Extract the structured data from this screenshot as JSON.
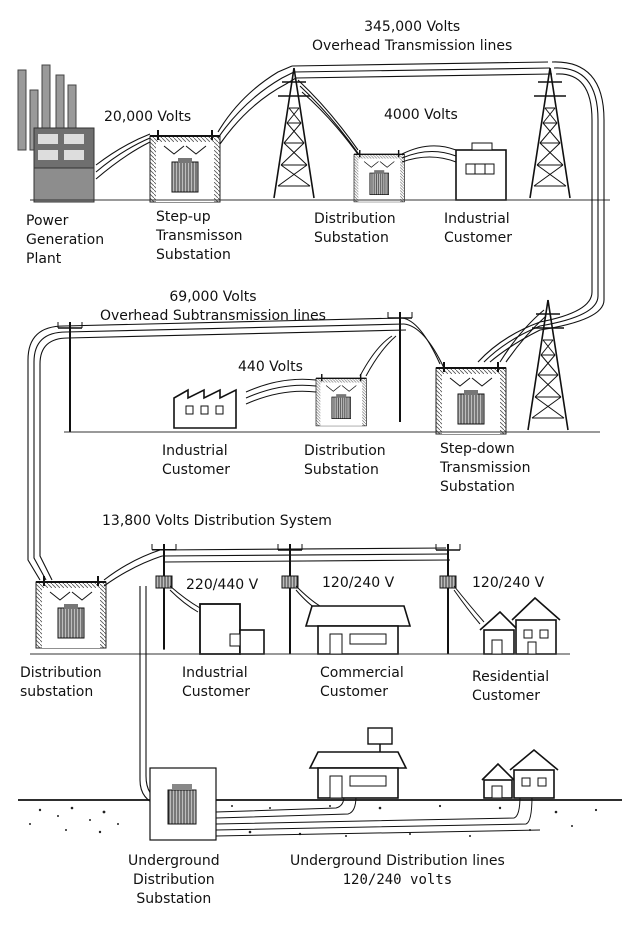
{
  "diagram": {
    "voltages": {
      "transmission_345": [
        "345,000 Volts",
        "Overhead Transmission lines"
      ],
      "gen_20000": "20,000 Volts",
      "industrial_4000": "4000 Volts",
      "subtransmission_69": [
        "69,000 Volts",
        "Overhead Subtransmission lines"
      ],
      "industrial_440": "440 Volts",
      "distribution_13800": "13,800 Volts Distribution System",
      "industrial_220_440": "220/440 V",
      "commercial_120_240": "120/240 V",
      "residential_120_240": "120/240 V",
      "underground_lines": [
        "Underground Distribution lines",
        "120/240 volts"
      ]
    },
    "nodes": {
      "power_plant": [
        "Power",
        "Generation",
        "Plant"
      ],
      "step_up": [
        "Step-up",
        "Transmisson",
        "Substation"
      ],
      "dist_sub_top": [
        "Distribution",
        "Substation"
      ],
      "industrial_top": [
        "Industrial",
        "Customer"
      ],
      "industrial_mid": [
        "Industrial",
        "Customer"
      ],
      "dist_sub_mid": [
        "Distribution",
        "Substation"
      ],
      "step_down": [
        "Step-down",
        "Transmission",
        "Substation"
      ],
      "dist_sub_lower": [
        "Distribution",
        "substation"
      ],
      "industrial_low": [
        "Industrial",
        "Customer"
      ],
      "commercial": [
        "Commercial",
        "Customer"
      ],
      "residential": [
        "Residential",
        "Customer"
      ],
      "underground_sub": [
        "Underground",
        "Distribution",
        "Substation"
      ]
    }
  }
}
